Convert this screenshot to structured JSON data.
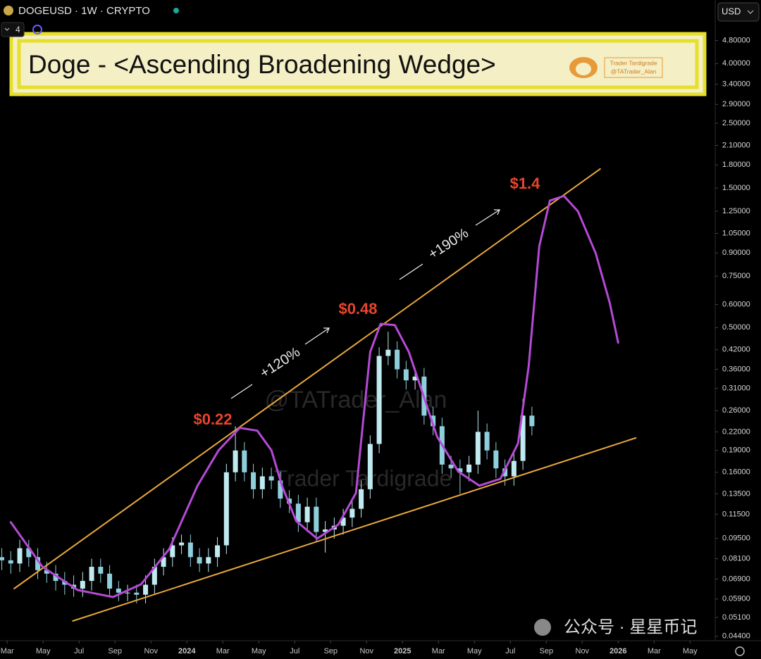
{
  "header": {
    "symbol": "DOGEUSD · 1W · CRYPTO",
    "indicator_count": "4",
    "currency": "USD",
    "banner_title": "Doge - <Ascending Broadening Wedge>",
    "logo_name": "Trader Tardigrade",
    "logo_handle": "@TATrader_Alan",
    "watermark_handle": "@TATrader_Alan",
    "watermark_name": "Trader Tardigrade",
    "footer": "公众号 · 星星币记"
  },
  "chart_data": {
    "type": "candlestick",
    "log_scale": true,
    "grid": false,
    "up_color": "#bfeaf0",
    "down_color": "#8fcfdc",
    "xlim": [
      1.6,
      41.4
    ],
    "ylim": [
      0.042,
      6.6
    ],
    "xticks": [
      {
        "value": 2,
        "label": "Mar"
      },
      {
        "value": 4,
        "label": "May"
      },
      {
        "value": 6,
        "label": "Jul"
      },
      {
        "value": 8,
        "label": "Sep"
      },
      {
        "value": 10,
        "label": "Nov"
      },
      {
        "value": 12,
        "label": "2024"
      },
      {
        "value": 14,
        "label": "Mar"
      },
      {
        "value": 16,
        "label": "May"
      },
      {
        "value": 18,
        "label": "Jul"
      },
      {
        "value": 20,
        "label": "Sep"
      },
      {
        "value": 22,
        "label": "Nov"
      },
      {
        "value": 24,
        "label": "2025"
      },
      {
        "value": 26,
        "label": "Mar"
      },
      {
        "value": 28,
        "label": "May"
      },
      {
        "value": 30,
        "label": "Jul"
      },
      {
        "value": 32,
        "label": "Sep"
      },
      {
        "value": 34,
        "label": "Nov"
      },
      {
        "value": 36,
        "label": "2026"
      },
      {
        "value": 38,
        "label": "Mar"
      },
      {
        "value": 40,
        "label": "May"
      }
    ],
    "yticks": [
      {
        "value": 4.8,
        "label": "4.80000"
      },
      {
        "value": 4.0,
        "label": "4.00000"
      },
      {
        "value": 3.4,
        "label": "3.40000"
      },
      {
        "value": 2.9,
        "label": "2.90000"
      },
      {
        "value": 2.5,
        "label": "2.50000"
      },
      {
        "value": 2.1,
        "label": "2.10000"
      },
      {
        "value": 1.8,
        "label": "1.80000"
      },
      {
        "value": 1.5,
        "label": "1.50000"
      },
      {
        "value": 1.25,
        "label": "1.25000"
      },
      {
        "value": 1.05,
        "label": "1.05000"
      },
      {
        "value": 0.9,
        "label": "0.90000"
      },
      {
        "value": 0.75,
        "label": "0.75000"
      },
      {
        "value": 0.6,
        "label": "0.60000"
      },
      {
        "value": 0.5,
        "label": "0.50000"
      },
      {
        "value": 0.42,
        "label": "0.42000"
      },
      {
        "value": 0.36,
        "label": "0.36000"
      },
      {
        "value": 0.31,
        "label": "0.31000"
      },
      {
        "value": 0.26,
        "label": "0.26000"
      },
      {
        "value": 0.22,
        "label": "0.22000"
      },
      {
        "value": 0.19,
        "label": "0.19000"
      },
      {
        "value": 0.16,
        "label": "0.16000"
      },
      {
        "value": 0.135,
        "label": "0.13500"
      },
      {
        "value": 0.115,
        "label": "0.11500"
      },
      {
        "value": 0.095,
        "label": "0.09500"
      },
      {
        "value": 0.081,
        "label": "0.08100"
      },
      {
        "value": 0.069,
        "label": "0.06900"
      },
      {
        "value": 0.059,
        "label": "0.05900"
      },
      {
        "value": 0.051,
        "label": "0.05100"
      },
      {
        "value": 0.044,
        "label": "0.04400"
      }
    ],
    "x": [
      1.7,
      2.2,
      2.7,
      3.2,
      3.7,
      4.2,
      4.7,
      5.2,
      5.7,
      6.2,
      6.7,
      7.2,
      7.7,
      8.2,
      8.7,
      9.2,
      9.7,
      10.2,
      10.7,
      11.2,
      11.7,
      12.2,
      12.7,
      13.2,
      13.7,
      14.2,
      14.7,
      15.2,
      15.7,
      16.2,
      16.7,
      17.2,
      17.7,
      18.2,
      18.7,
      19.2,
      19.7,
      20.2,
      20.7,
      21.2,
      21.7,
      22.2,
      22.7,
      23.2,
      23.7,
      24.2,
      24.7,
      25.2,
      25.7,
      26.2,
      26.7,
      27.2,
      27.7,
      28.2,
      28.7,
      29.2,
      29.7,
      30.2,
      30.7,
      31.2
    ],
    "open": [
      0.082,
      0.08,
      0.078,
      0.088,
      0.082,
      0.074,
      0.072,
      0.068,
      0.066,
      0.064,
      0.068,
      0.076,
      0.072,
      0.064,
      0.062,
      0.062,
      0.061,
      0.066,
      0.076,
      0.082,
      0.09,
      0.092,
      0.082,
      0.078,
      0.082,
      0.09,
      0.16,
      0.19,
      0.16,
      0.14,
      0.155,
      0.15,
      0.13,
      0.125,
      0.108,
      0.122,
      0.1,
      0.102,
      0.105,
      0.112,
      0.12,
      0.14,
      0.2,
      0.4,
      0.42,
      0.36,
      0.33,
      0.34,
      0.25,
      0.23,
      0.17,
      0.165,
      0.16,
      0.17,
      0.22,
      0.19,
      0.165,
      0.155,
      0.175,
      0.25
    ],
    "high": [
      0.088,
      0.086,
      0.094,
      0.094,
      0.088,
      0.079,
      0.077,
      0.073,
      0.071,
      0.073,
      0.081,
      0.081,
      0.077,
      0.068,
      0.066,
      0.066,
      0.071,
      0.081,
      0.088,
      0.096,
      0.098,
      0.098,
      0.088,
      0.088,
      0.096,
      0.171,
      0.23,
      0.203,
      0.171,
      0.166,
      0.166,
      0.161,
      0.139,
      0.134,
      0.131,
      0.131,
      0.109,
      0.112,
      0.12,
      0.128,
      0.15,
      0.214,
      0.428,
      0.484,
      0.449,
      0.385,
      0.364,
      0.364,
      0.268,
      0.246,
      0.182,
      0.177,
      0.182,
      0.26,
      0.235,
      0.203,
      0.177,
      0.187,
      0.285,
      0.268
    ],
    "low": [
      0.074,
      0.072,
      0.073,
      0.076,
      0.069,
      0.067,
      0.063,
      0.061,
      0.06,
      0.06,
      0.063,
      0.067,
      0.06,
      0.058,
      0.058,
      0.057,
      0.057,
      0.061,
      0.071,
      0.076,
      0.084,
      0.076,
      0.073,
      0.073,
      0.076,
      0.084,
      0.149,
      0.149,
      0.13,
      0.13,
      0.14,
      0.121,
      0.116,
      0.1,
      0.1,
      0.093,
      0.085,
      0.095,
      0.098,
      0.104,
      0.112,
      0.13,
      0.186,
      0.372,
      0.335,
      0.307,
      0.307,
      0.233,
      0.214,
      0.158,
      0.153,
      0.135,
      0.149,
      0.158,
      0.177,
      0.153,
      0.144,
      0.144,
      0.163,
      0.214
    ],
    "close": [
      0.08,
      0.078,
      0.088,
      0.082,
      0.074,
      0.072,
      0.068,
      0.066,
      0.064,
      0.068,
      0.076,
      0.072,
      0.064,
      0.062,
      0.062,
      0.061,
      0.066,
      0.076,
      0.082,
      0.09,
      0.092,
      0.082,
      0.078,
      0.082,
      0.09,
      0.16,
      0.19,
      0.16,
      0.14,
      0.155,
      0.15,
      0.13,
      0.125,
      0.108,
      0.122,
      0.1,
      0.102,
      0.105,
      0.112,
      0.12,
      0.14,
      0.2,
      0.4,
      0.42,
      0.36,
      0.33,
      0.34,
      0.25,
      0.23,
      0.17,
      0.165,
      0.16,
      0.17,
      0.22,
      0.19,
      0.165,
      0.155,
      0.175,
      0.25,
      0.23
    ],
    "lines": [
      {
        "color": "#e9a83c",
        "x": [
          2.39,
          35.0
        ],
        "values": [
          0.064,
          1.745
        ]
      },
      {
        "color": "#e9a83c",
        "x": [
          5.65,
          36.98
        ],
        "values": [
          0.0496,
          0.2097
        ]
      },
      {
        "color": "#b54ad6",
        "x": [
          2.2,
          3.96,
          5.92,
          7.88,
          9.45,
          11.02,
          12.59,
          13.76,
          14.94,
          15.92,
          16.71,
          17.29,
          18.08,
          19.25,
          20.43,
          21.41,
          21.8,
          22.2,
          22.78,
          23.57,
          24.35,
          25.14,
          25.92,
          27.1,
          28.27,
          29.45,
          30.43,
          31.02,
          31.61,
          32.2,
          32.98,
          33.76,
          34.75,
          35.53,
          36.0
        ],
        "values": [
          0.108,
          0.076,
          0.0633,
          0.0599,
          0.0662,
          0.0874,
          0.1439,
          0.19,
          0.227,
          0.222,
          0.19,
          0.144,
          0.109,
          0.0949,
          0.106,
          0.136,
          0.237,
          0.413,
          0.515,
          0.51,
          0.413,
          0.296,
          0.212,
          0.161,
          0.144,
          0.152,
          0.201,
          0.369,
          0.948,
          1.36,
          1.41,
          1.25,
          0.898,
          0.608,
          0.444
        ]
      }
    ],
    "annotations": [
      "$0.22",
      "$0.48",
      "$1.4",
      "+120%",
      "+190%"
    ]
  }
}
